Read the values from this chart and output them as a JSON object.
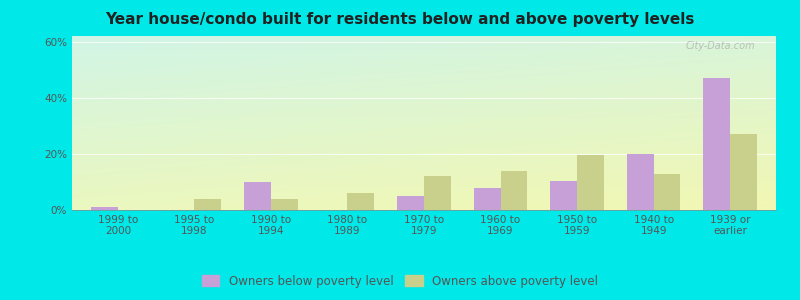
{
  "title": "Year house/condo built for residents below and above poverty levels",
  "categories": [
    "1999 to\n2000",
    "1995 to\n1998",
    "1990 to\n1994",
    "1980 to\n1989",
    "1970 to\n1979",
    "1960 to\n1969",
    "1950 to\n1959",
    "1940 to\n1949",
    "1939 or\nearlier"
  ],
  "below_poverty": [
    1.0,
    0.0,
    10.0,
    0.0,
    5.0,
    8.0,
    10.5,
    20.0,
    47.0
  ],
  "above_poverty": [
    0.0,
    4.0,
    4.0,
    6.0,
    12.0,
    14.0,
    19.5,
    13.0,
    27.0
  ],
  "below_color": "#c8a0d8",
  "above_color": "#c8d08c",
  "ylim": [
    0,
    62
  ],
  "yticks": [
    0,
    20,
    40,
    60
  ],
  "ytick_labels": [
    "0%",
    "20%",
    "40%",
    "60%"
  ],
  "legend_below_label": "Owners below poverty level",
  "legend_above_label": "Owners above poverty level",
  "title_fontsize": 11,
  "tick_fontsize": 7.5,
  "legend_fontsize": 8.5,
  "bar_width": 0.35,
  "outer_bg": "#00e8e8"
}
